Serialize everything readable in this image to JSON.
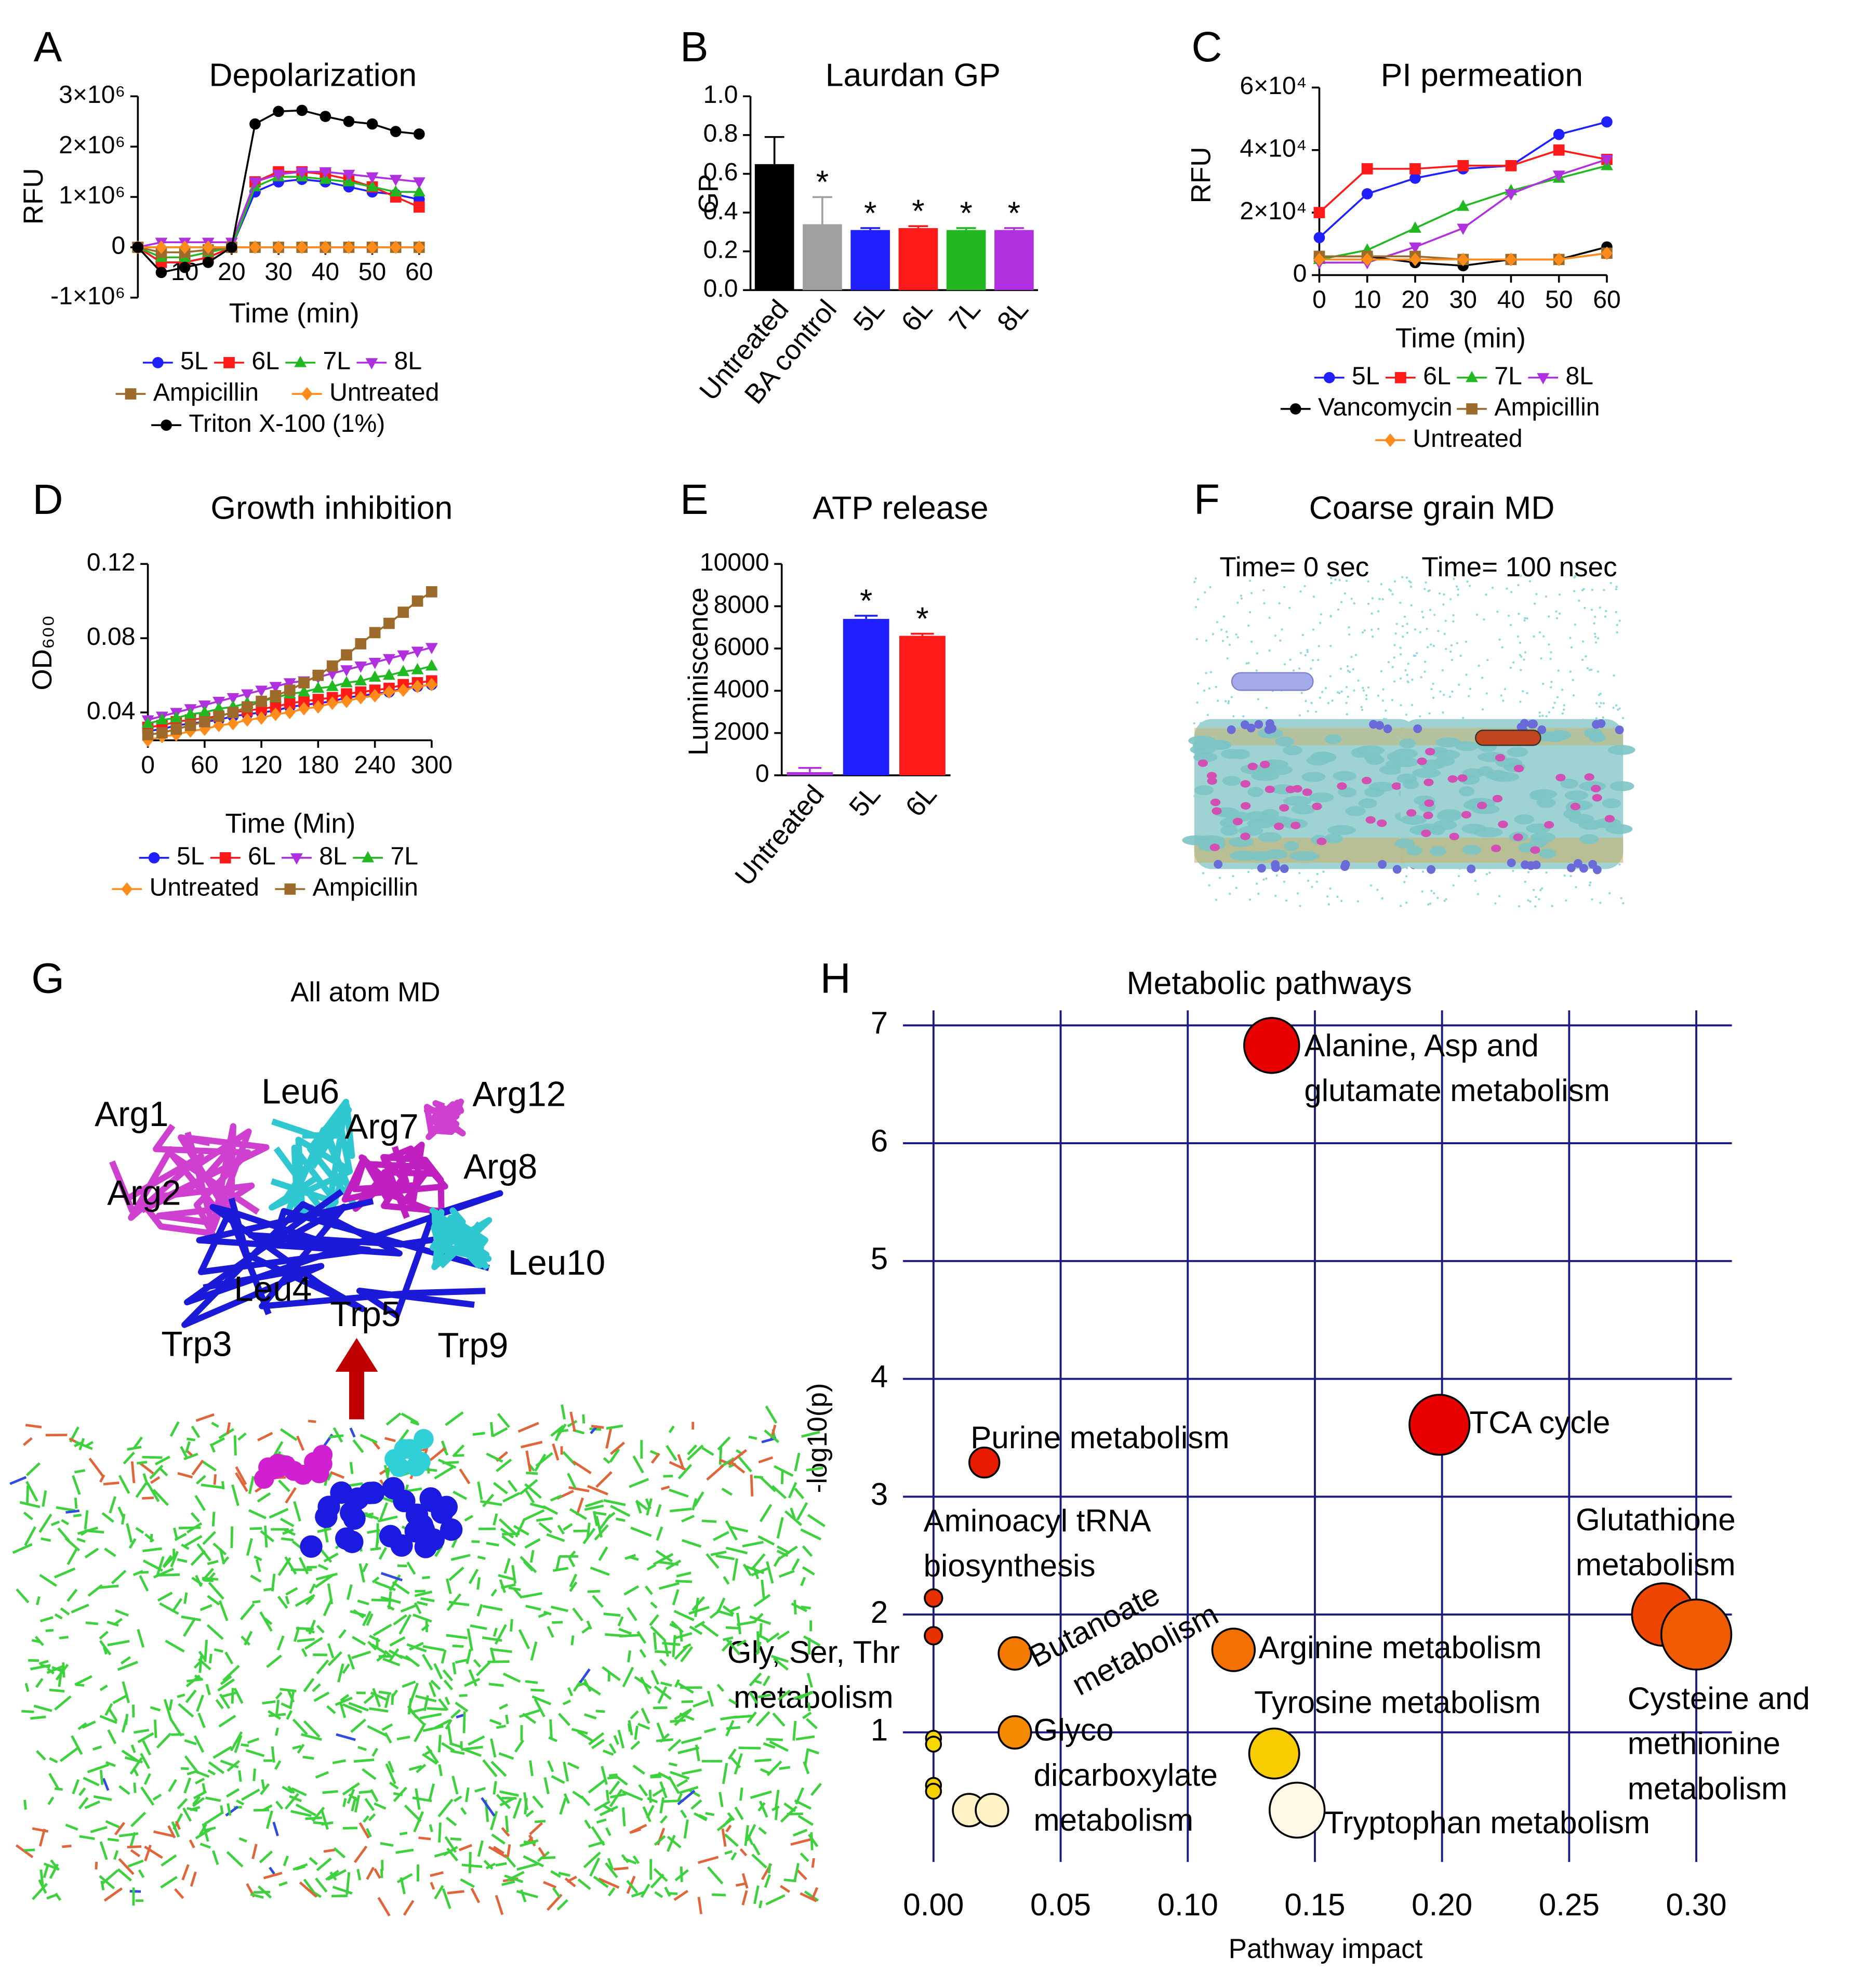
{
  "chart_data": [
    {
      "type": "line",
      "panel": "A",
      "title": "Depolarization",
      "xlabel": "Time (min)",
      "ylabel": "RFU",
      "x": [
        0,
        5,
        10,
        15,
        20,
        25,
        30,
        35,
        40,
        45,
        50,
        55,
        60
      ],
      "xlim": [
        0,
        60
      ],
      "xticks": [
        10,
        20,
        30,
        40,
        50,
        60
      ],
      "ylim": [
        -1000000,
        3000000
      ],
      "yticks": [
        {
          "value": -1000000,
          "label": "-1×10⁶"
        },
        0,
        {
          "value": 1000000,
          "label": "1×10⁶"
        },
        {
          "value": 2000000,
          "label": "2×10⁶"
        },
        {
          "value": 3000000,
          "label": "3×10⁶"
        }
      ],
      "series": [
        {
          "name": "5L",
          "color": "#1f1fff",
          "marker": "circle",
          "values": [
            0,
            -300000,
            -300000,
            -200000,
            0,
            1100000,
            1300000,
            1350000,
            1300000,
            1200000,
            1100000,
            1050000,
            950000
          ]
        },
        {
          "name": "6L",
          "color": "#ff1a1a",
          "marker": "square",
          "values": [
            0,
            -300000,
            -300000,
            -200000,
            0,
            1300000,
            1500000,
            1500000,
            1450000,
            1350000,
            1200000,
            1000000,
            800000
          ]
        },
        {
          "name": "7L",
          "color": "#22b822",
          "marker": "triangle",
          "values": [
            0,
            -200000,
            -200000,
            -100000,
            0,
            1200000,
            1400000,
            1400000,
            1350000,
            1300000,
            1200000,
            1100000,
            1100000
          ]
        },
        {
          "name": "8L",
          "color": "#b030e0",
          "marker": "triangle-down",
          "values": [
            0,
            100000,
            100000,
            100000,
            100000,
            1300000,
            1450000,
            1500000,
            1500000,
            1450000,
            1400000,
            1350000,
            1300000
          ]
        },
        {
          "name": "Ampicillin",
          "color": "#9c6a2a",
          "marker": "square",
          "values": [
            0,
            -100000,
            -100000,
            -50000,
            0,
            0,
            0,
            0,
            0,
            0,
            0,
            0,
            0
          ]
        },
        {
          "name": "Untreated",
          "color": "#ff8c1a",
          "marker": "diamond",
          "values": [
            0,
            0,
            0,
            0,
            0,
            0,
            0,
            0,
            0,
            0,
            0,
            0,
            0
          ]
        },
        {
          "name": "Triton X-100 (1%)",
          "color": "#000000",
          "marker": "circle",
          "values": [
            0,
            -500000,
            -400000,
            -300000,
            0,
            2450000,
            2700000,
            2720000,
            2600000,
            2500000,
            2450000,
            2300000,
            2250000
          ]
        }
      ]
    },
    {
      "type": "bar",
      "panel": "B",
      "title": "Laurdan GP",
      "ylabel": "GP",
      "categories": [
        "Untreated",
        "BA control",
        "5L",
        "6L",
        "7L",
        "8L"
      ],
      "values": [
        0.65,
        0.34,
        0.31,
        0.32,
        0.31,
        0.31
      ],
      "errors": [
        0.14,
        0.14,
        0.01,
        0.01,
        0.01,
        0.01
      ],
      "colors": [
        "#000000",
        "#a0a0a0",
        "#1f1fff",
        "#ff1a1a",
        "#22b822",
        "#b030e0"
      ],
      "significance": [
        null,
        "*",
        "*",
        "*",
        "*",
        "*"
      ],
      "ylim": [
        0,
        1.0
      ],
      "yticks": [
        {
          "value": 0,
          "label": "0.0"
        },
        0.2,
        0.4,
        0.6,
        0.8,
        {
          "value": 1.0,
          "label": "1.0"
        }
      ]
    },
    {
      "type": "line",
      "panel": "C",
      "title": "PI permeation",
      "xlabel": "Time (min)",
      "ylabel": "RFU",
      "x": [
        0,
        10,
        20,
        30,
        40,
        50,
        60
      ],
      "xlim": [
        0,
        60
      ],
      "xticks": [
        0,
        10,
        20,
        30,
        40,
        50,
        60
      ],
      "ylim": [
        0,
        60000
      ],
      "yticks": [
        0,
        {
          "value": 20000,
          "label": "2×10⁴"
        },
        {
          "value": 40000,
          "label": "4×10⁴"
        },
        {
          "value": 60000,
          "label": "6×10⁴"
        }
      ],
      "series": [
        {
          "name": "5L",
          "color": "#1f1fff",
          "marker": "circle",
          "values": [
            12000,
            26000,
            31000,
            34000,
            35000,
            45000,
            49000
          ]
        },
        {
          "name": "6L",
          "color": "#ff1a1a",
          "marker": "square",
          "values": [
            20000,
            34000,
            34000,
            35000,
            35000,
            40000,
            37000
          ]
        },
        {
          "name": "7L",
          "color": "#22b822",
          "marker": "triangle",
          "values": [
            5000,
            8000,
            15000,
            22000,
            27000,
            31000,
            35000
          ]
        },
        {
          "name": "8L",
          "color": "#b030e0",
          "marker": "triangle-down",
          "values": [
            4000,
            4000,
            9000,
            15000,
            26000,
            32000,
            37000
          ]
        },
        {
          "name": "Vancomycin",
          "color": "#000000",
          "marker": "circle",
          "values": [
            6000,
            6000,
            4000,
            3000,
            5000,
            5000,
            9000
          ]
        },
        {
          "name": "Ampicillin",
          "color": "#9c6a2a",
          "marker": "square",
          "values": [
            6000,
            6000,
            6000,
            5000,
            5000,
            5000,
            7000
          ]
        },
        {
          "name": "Untreated",
          "color": "#ff8c1a",
          "marker": "diamond",
          "values": [
            5000,
            5000,
            5000,
            5000,
            5000,
            5000,
            7000
          ]
        }
      ]
    },
    {
      "type": "line",
      "panel": "D",
      "title": "Growth inhibition",
      "xlabel": "Time (Min)",
      "ylabel": "OD₆₀₀",
      "x": [
        0,
        15,
        30,
        45,
        60,
        75,
        90,
        105,
        120,
        135,
        150,
        165,
        180,
        195,
        210,
        225,
        240,
        255,
        270,
        285,
        300
      ],
      "xlim": [
        0,
        300
      ],
      "xticks": [
        0,
        60,
        120,
        180,
        240,
        300
      ],
      "ylim": [
        0.025,
        0.12
      ],
      "yticks": [
        0.04,
        0.08,
        0.12
      ],
      "series": [
        {
          "name": "5L",
          "color": "#1f1fff",
          "marker": "circle",
          "values": [
            0.03,
            0.031,
            0.033,
            0.034,
            0.035,
            0.036,
            0.038,
            0.039,
            0.04,
            0.041,
            0.043,
            0.044,
            0.045,
            0.046,
            0.048,
            0.049,
            0.05,
            0.051,
            0.053,
            0.054,
            0.055
          ]
        },
        {
          "name": "6L",
          "color": "#ff1a1a",
          "marker": "square",
          "values": [
            0.032,
            0.033,
            0.035,
            0.036,
            0.037,
            0.038,
            0.04,
            0.041,
            0.042,
            0.043,
            0.045,
            0.046,
            0.047,
            0.048,
            0.05,
            0.051,
            0.052,
            0.053,
            0.055,
            0.056,
            0.057
          ]
        },
        {
          "name": "8L",
          "color": "#b030e0",
          "marker": "triangle-down",
          "values": [
            0.036,
            0.038,
            0.04,
            0.042,
            0.044,
            0.046,
            0.048,
            0.05,
            0.052,
            0.054,
            0.056,
            0.057,
            0.059,
            0.061,
            0.063,
            0.065,
            0.067,
            0.069,
            0.071,
            0.073,
            0.075
          ]
        },
        {
          "name": "7L",
          "color": "#22b822",
          "marker": "triangle",
          "values": [
            0.034,
            0.036,
            0.037,
            0.039,
            0.04,
            0.042,
            0.043,
            0.045,
            0.046,
            0.048,
            0.05,
            0.051,
            0.053,
            0.054,
            0.056,
            0.057,
            0.059,
            0.06,
            0.062,
            0.063,
            0.065
          ]
        },
        {
          "name": "Untreated",
          "color": "#ff8c1a",
          "marker": "diamond",
          "values": [
            0.025,
            0.027,
            0.028,
            0.03,
            0.031,
            0.033,
            0.034,
            0.036,
            0.037,
            0.039,
            0.04,
            0.042,
            0.043,
            0.045,
            0.046,
            0.048,
            0.049,
            0.051,
            0.052,
            0.054,
            0.055
          ]
        },
        {
          "name": "Ampicillin",
          "color": "#9c6a2a",
          "marker": "square",
          "values": [
            0.028,
            0.029,
            0.031,
            0.033,
            0.035,
            0.038,
            0.04,
            0.043,
            0.046,
            0.049,
            0.052,
            0.056,
            0.06,
            0.065,
            0.071,
            0.077,
            0.083,
            0.088,
            0.094,
            0.1,
            0.105
          ]
        }
      ]
    },
    {
      "type": "bar",
      "panel": "E",
      "title": "ATP release",
      "ylabel": "Luminiscence",
      "categories": [
        "Untreated",
        "5L",
        "6L"
      ],
      "values": [
        150,
        7400,
        6600
      ],
      "errors": [
        200,
        150,
        100
      ],
      "colors": [
        "#b030e0",
        "#1f1fff",
        "#ff1a1a"
      ],
      "significance": [
        null,
        "*",
        "*"
      ],
      "ylim": [
        0,
        10000
      ],
      "yticks": [
        0,
        2000,
        4000,
        6000,
        8000,
        10000
      ]
    },
    {
      "type": "bubble",
      "panel": "H",
      "title": "Metabolic pathways",
      "xlabel": "Pathway impact",
      "ylabel": "-log10(p)",
      "x": [
        0.133,
        0.199,
        0.02,
        0.0,
        0.0,
        0.032,
        0.118,
        0.287,
        0.3,
        0.032,
        0.134,
        0.143,
        0.0,
        0.0,
        0.0,
        0.0,
        0.014,
        0.023
      ],
      "y": [
        6.83,
        3.61,
        3.29,
        2.14,
        1.82,
        1.67,
        1.7,
        2.0,
        1.83,
        1.0,
        0.82,
        0.34,
        0.95,
        0.9,
        0.55,
        0.5,
        0.34,
        0.34
      ],
      "sizes": [
        22,
        24,
        12,
        7,
        7,
        13,
        17,
        25,
        28,
        13,
        20,
        22,
        6,
        6,
        6,
        6,
        13,
        13
      ],
      "colors": [
        "#e80000",
        "#e80000",
        "#e81a00",
        "#e83000",
        "#e83000",
        "#f47a00",
        "#f47000",
        "#f04500",
        "#f05a00",
        "#f58a00",
        "#f7cc00",
        "#fff8e6",
        "#f7d800",
        "#f7d800",
        "#f7d000",
        "#f7d000",
        "#fff2c4",
        "#fff2c4"
      ],
      "labels": [
        [
          "Alanine, Asp and",
          "glutamate metabolism"
        ],
        [
          "TCA cycle"
        ],
        [
          "Purine metabolism"
        ],
        [
          "Aminoacyl tRNA",
          "biosynthesis"
        ],
        [
          "Gly, Ser, Thr",
          "metabolism"
        ],
        [
          "Butanoate",
          "metabolism"
        ],
        [
          "Arginine metabolism"
        ],
        [
          "Glutathione",
          "metabolism"
        ],
        [
          "Cysteine and",
          "methionine",
          "metabolism"
        ],
        [
          "Glyco",
          "dicarboxylate",
          "metabolism"
        ],
        [
          "Tyrosine metabolism"
        ],
        [
          "Tryptophan metabolism"
        ],
        null,
        null,
        null,
        null,
        null,
        null
      ],
      "xlim": [
        -0.012,
        0.314
      ],
      "xticks": [
        {
          "value": 0,
          "label": "0.00"
        },
        0.05,
        {
          "value": 0.1,
          "label": "0.10"
        },
        0.15,
        {
          "value": 0.2,
          "label": "0.20"
        },
        0.25,
        {
          "value": 0.3,
          "label": "0.30"
        }
      ],
      "ylim": [
        -0.1,
        7
      ],
      "yticks": [
        1,
        2,
        3,
        4,
        5,
        6,
        7
      ],
      "grid": true,
      "grid_color": "#1a1a80"
    }
  ],
  "figures": [
    {
      "panel": "F",
      "title": "Coarse grain MD",
      "captions": [
        "Time= 0 sec",
        "Time= 100 nsec"
      ]
    },
    {
      "panel": "G",
      "title": "All atom MD",
      "residues": [
        "Arg1",
        "Arg2",
        "Leu6",
        "Arg7",
        "Arg12",
        "Arg8",
        "Leu10",
        "Leu4",
        "Trp5",
        "Trp3",
        "Trp9"
      ]
    }
  ]
}
